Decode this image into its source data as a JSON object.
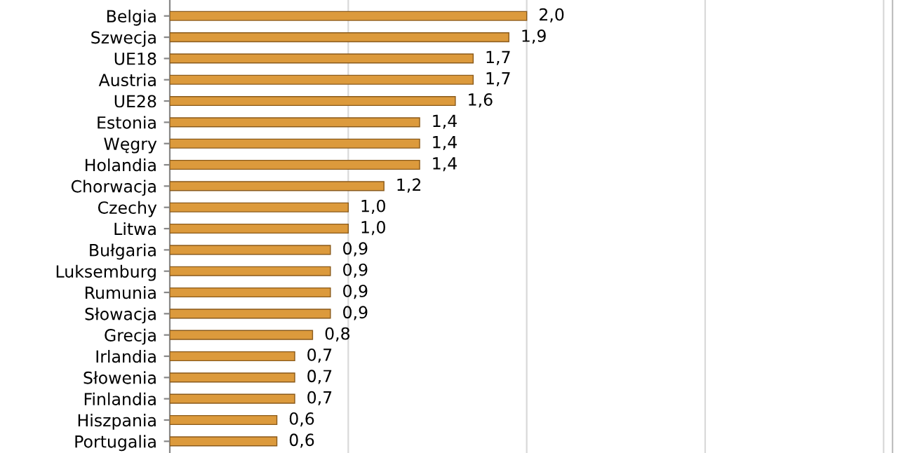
{
  "chart_data": {
    "type": "bar",
    "orientation": "horizontal",
    "categories": [
      "Belgia",
      "Szwecja",
      "UE18",
      "Austria",
      "UE28",
      "Estonia",
      "Węgry",
      "Holandia",
      "Chorwacja",
      "Czechy",
      "Litwa",
      "Bułgaria",
      "Luksemburg",
      "Rumunia",
      "Słowacja",
      "Grecja",
      "Irlandia",
      "Słowenia",
      "Finlandia",
      "Hiszpania",
      "Portugalia"
    ],
    "values": [
      2.0,
      1.9,
      1.7,
      1.7,
      1.6,
      1.4,
      1.4,
      1.4,
      1.2,
      1.0,
      1.0,
      0.9,
      0.9,
      0.9,
      0.9,
      0.8,
      0.7,
      0.7,
      0.7,
      0.6,
      0.6
    ],
    "value_labels": [
      "2,0",
      "1,9",
      "1,7",
      "1,7",
      "1,6",
      "1,4",
      "1,4",
      "1,4",
      "1,2",
      "1,0",
      "1,0",
      "0,9",
      "0,9",
      "0,9",
      "0,9",
      "0,8",
      "0,7",
      "0,7",
      "0,7",
      "0,6",
      "0,6"
    ],
    "color": "#dc9a3c",
    "xlim": [
      0,
      4.05
    ],
    "xticks": [
      {
        "value": 1,
        "label": null
      },
      {
        "value": 2,
        "label": null
      },
      {
        "value": 3,
        "label": null
      },
      {
        "value": 4,
        "label": null
      }
    ],
    "grid": "x"
  }
}
